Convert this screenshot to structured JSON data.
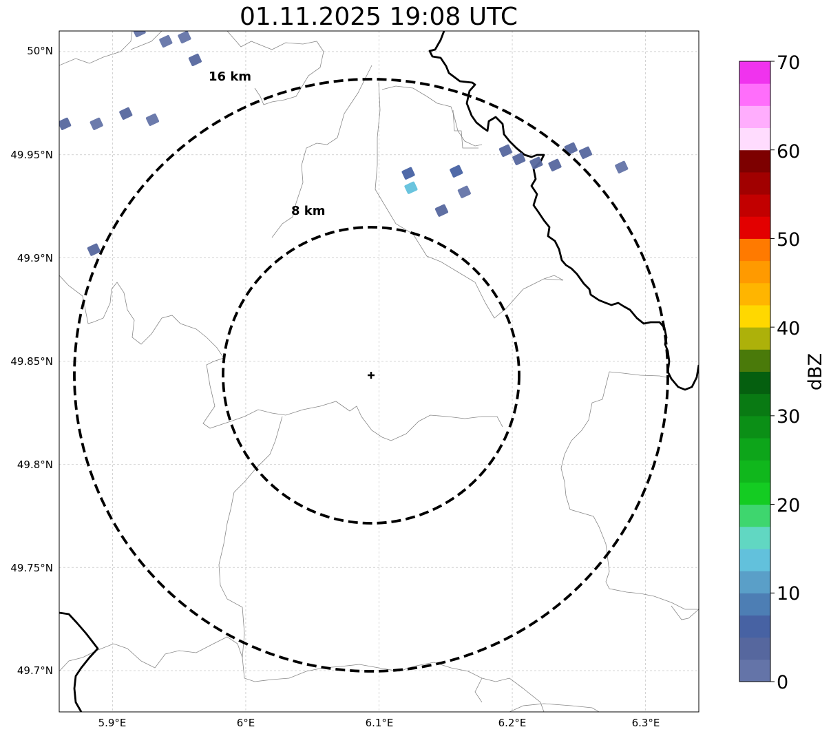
{
  "title": "01.11.2025 19:08 UTC",
  "map": {
    "lat_ticks": [
      "50°N",
      "49.95°N",
      "49.9°N",
      "49.85°N",
      "49.8°N",
      "49.75°N",
      "49.7°N"
    ],
    "lon_ticks": [
      "5.9°E",
      "6°E",
      "6.1°E",
      "6.2°E",
      "6.3°E"
    ],
    "lon_range": [
      5.86,
      6.34
    ],
    "lat_range": [
      49.68,
      50.01
    ],
    "radar_site": {
      "lon": 6.095,
      "lat": 49.843
    },
    "range_rings": [
      {
        "label": "8 km",
        "radius_km": 8
      },
      {
        "label": "16 km",
        "radius_km": 16
      }
    ],
    "grid": true,
    "colors": {
      "borders": "#000000",
      "admin_lines": "#888888",
      "rings": "#000000"
    }
  },
  "colorbar": {
    "label": "dBZ",
    "tick_labels": [
      "0",
      "10",
      "20",
      "30",
      "40",
      "50",
      "60",
      "70"
    ],
    "min": 0,
    "max": 70,
    "colors": [
      "#6474a8",
      "#56679e",
      "#4762a3",
      "#4d7eb4",
      "#5a9fc8",
      "#62c1dc",
      "#61d7c2",
      "#3ed66e",
      "#14cc22",
      "#10b71c",
      "#0da51a",
      "#0b8f16",
      "#097a13",
      "#055f0f",
      "#4a7a0a",
      "#adb10a",
      "#ffd800",
      "#ffb500",
      "#ff9a00",
      "#ff7a00",
      "#e30000",
      "#c20000",
      "#a10000",
      "#7d0000",
      "#ffdcfe",
      "#ffadfd",
      "#ff6efb",
      "#f033ee"
    ]
  },
  "chart_data": {
    "type": "heatmap",
    "title": "01.11.2025 19:08 UTC",
    "colorbar_label": "dBZ",
    "value_range": [
      0,
      70
    ],
    "echo_cells": [
      {
        "lon": 5.92,
        "lat": 50.01,
        "dbz": 2
      },
      {
        "lon": 5.94,
        "lat": 50.005,
        "dbz": 2
      },
      {
        "lon": 5.954,
        "lat": 50.007,
        "dbz": 2
      },
      {
        "lon": 5.962,
        "lat": 49.996,
        "dbz": 3
      },
      {
        "lon": 5.864,
        "lat": 49.965,
        "dbz": 3
      },
      {
        "lon": 5.888,
        "lat": 49.965,
        "dbz": 2
      },
      {
        "lon": 5.91,
        "lat": 49.97,
        "dbz": 3
      },
      {
        "lon": 5.93,
        "lat": 49.967,
        "dbz": 2
      },
      {
        "lon": 5.886,
        "lat": 49.904,
        "dbz": 3
      },
      {
        "lon": 6.122,
        "lat": 49.941,
        "dbz": 5
      },
      {
        "lon": 6.124,
        "lat": 49.934,
        "dbz": 14
      },
      {
        "lon": 6.158,
        "lat": 49.942,
        "dbz": 5
      },
      {
        "lon": 6.164,
        "lat": 49.932,
        "dbz": 2
      },
      {
        "lon": 6.147,
        "lat": 49.923,
        "dbz": 4
      },
      {
        "lon": 6.195,
        "lat": 49.952,
        "dbz": 3
      },
      {
        "lon": 6.205,
        "lat": 49.948,
        "dbz": 4
      },
      {
        "lon": 6.218,
        "lat": 49.946,
        "dbz": 3
      },
      {
        "lon": 6.232,
        "lat": 49.945,
        "dbz": 4
      },
      {
        "lon": 6.244,
        "lat": 49.953,
        "dbz": 3
      },
      {
        "lon": 6.255,
        "lat": 49.951,
        "dbz": 4
      },
      {
        "lon": 6.282,
        "lat": 49.944,
        "dbz": 2
      }
    ]
  }
}
